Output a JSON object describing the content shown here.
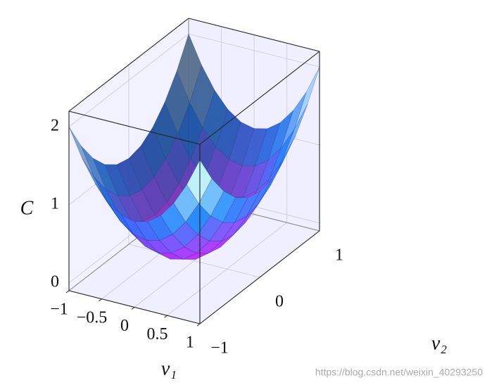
{
  "chart_data": {
    "type": "surface",
    "xlabel": "v₁",
    "ylabel": "v₂",
    "zlabel": "C",
    "x": [
      -1,
      -0.8,
      -0.6,
      -0.4,
      -0.2,
      0,
      0.2,
      0.4,
      0.6,
      0.8,
      1
    ],
    "y": [
      -1,
      -0.8,
      -0.6,
      -0.4,
      -0.2,
      0,
      0.2,
      0.4,
      0.6,
      0.8,
      1
    ],
    "z": [
      [
        2,
        1.64,
        1.36,
        1.16,
        1.04,
        1,
        1.04,
        1.16,
        1.36,
        1.64,
        2
      ],
      [
        1.64,
        1.28,
        1,
        0.8,
        0.68,
        0.64,
        0.68,
        0.8,
        1,
        1.28,
        1.64
      ],
      [
        1.36,
        1,
        0.72,
        0.52,
        0.4,
        0.36,
        0.4,
        0.52,
        0.72,
        1,
        1.36
      ],
      [
        1.16,
        0.8,
        0.52,
        0.32,
        0.2,
        0.16,
        0.2,
        0.32,
        0.52,
        0.8,
        1.16
      ],
      [
        1.04,
        0.68,
        0.4,
        0.2,
        0.08,
        0.04,
        0.08,
        0.2,
        0.4,
        0.68,
        1.04
      ],
      [
        1,
        0.64,
        0.36,
        0.16,
        0.04,
        0,
        0.04,
        0.16,
        0.36,
        0.64,
        1
      ],
      [
        1.04,
        0.68,
        0.4,
        0.2,
        0.08,
        0.04,
        0.08,
        0.2,
        0.4,
        0.68,
        1.04
      ],
      [
        1.16,
        0.8,
        0.52,
        0.32,
        0.2,
        0.16,
        0.2,
        0.32,
        0.52,
        0.8,
        1.16
      ],
      [
        1.36,
        1,
        0.72,
        0.52,
        0.4,
        0.36,
        0.4,
        0.52,
        0.72,
        1,
        1.36
      ],
      [
        1.64,
        1.28,
        1,
        0.8,
        0.68,
        0.64,
        0.68,
        0.8,
        1,
        1.28,
        1.64
      ],
      [
        2,
        1.64,
        1.36,
        1.16,
        1.04,
        1,
        1.04,
        1.16,
        1.36,
        1.64,
        2
      ]
    ],
    "xlim": [
      -1,
      1
    ],
    "ylim": [
      -1,
      1
    ],
    "zlim": [
      -0.1,
      2.2
    ],
    "xticks": [
      {
        "value": -1,
        "label": "−1"
      },
      {
        "value": -0.5,
        "label": "−0.5"
      },
      0,
      0.5,
      1
    ],
    "yticks": [
      {
        "value": -1,
        "label": "−1"
      },
      0,
      1
    ],
    "zticks": [
      0,
      1,
      2
    ],
    "colormap": [
      "#e01cf2",
      "#1e78ff",
      "#dcf2ff"
    ],
    "grid": true,
    "watermark": "https://blog.csdn.net/weixin_40293250"
  }
}
